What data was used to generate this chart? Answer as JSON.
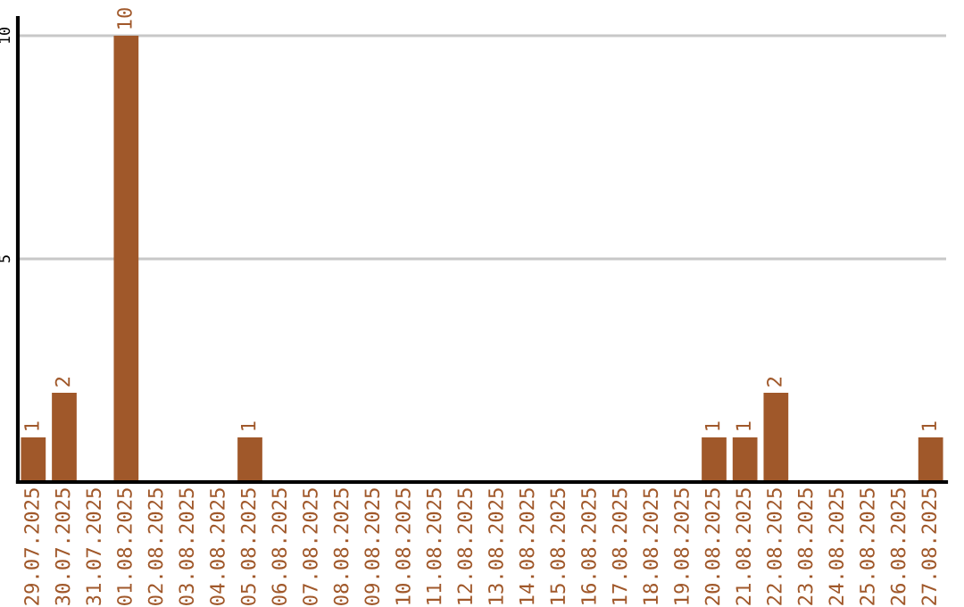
{
  "chart_data": {
    "type": "bar",
    "categories": [
      "29.07.2025",
      "30.07.2025",
      "31.07.2025",
      "01.08.2025",
      "02.08.2025",
      "03.08.2025",
      "04.08.2025",
      "05.08.2025",
      "06.08.2025",
      "07.08.2025",
      "08.08.2025",
      "09.08.2025",
      "10.08.2025",
      "11.08.2025",
      "12.08.2025",
      "13.08.2025",
      "14.08.2025",
      "15.08.2025",
      "16.08.2025",
      "17.08.2025",
      "18.08.2025",
      "19.08.2025",
      "20.08.2025",
      "21.08.2025",
      "22.08.2025",
      "23.08.2025",
      "24.08.2025",
      "25.08.2025",
      "26.08.2025",
      "27.08.2025"
    ],
    "values": [
      1,
      2,
      0,
      10,
      0,
      0,
      0,
      1,
      0,
      0,
      0,
      0,
      0,
      0,
      0,
      0,
      0,
      0,
      0,
      0,
      0,
      0,
      1,
      1,
      2,
      0,
      0,
      0,
      0,
      1
    ],
    "value_labels": [
      "1",
      "2",
      null,
      "10",
      null,
      null,
      null,
      "1",
      null,
      null,
      null,
      null,
      null,
      null,
      null,
      null,
      null,
      null,
      null,
      null,
      null,
      null,
      "1",
      "1",
      "2",
      null,
      null,
      null,
      null,
      "1"
    ],
    "color": "#a0582a",
    "ylim": [
      0,
      10.4
    ],
    "yticks": [
      5,
      10
    ],
    "grid": "y"
  }
}
